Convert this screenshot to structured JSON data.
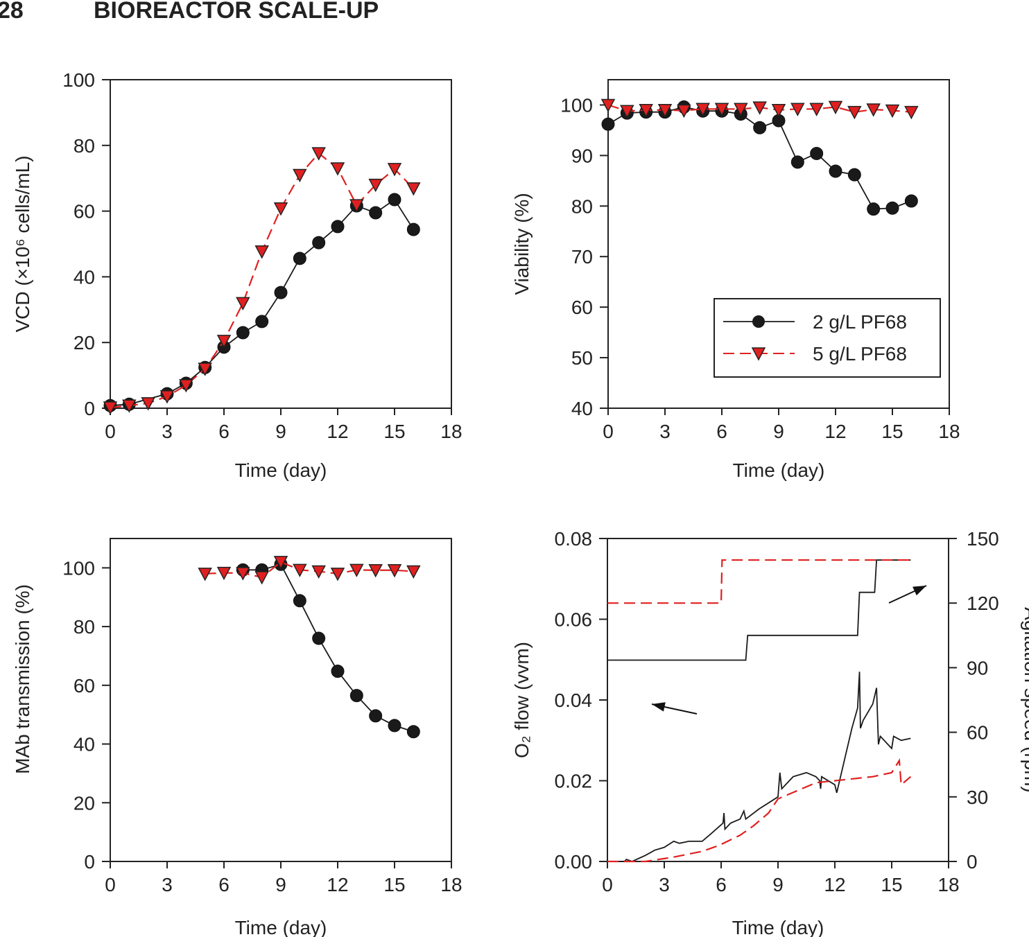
{
  "header": {
    "page_number": "28",
    "running_title": "BIOREACTOR SCALE-UP"
  },
  "colors": {
    "series_2gL": "#1a1a1a",
    "series_5gL": "#e02020",
    "axis": "#222222"
  },
  "chart_data": [
    {
      "type": "line",
      "xlabel": "Time (day)",
      "ylabel": "VCD (×10⁶ cells/mL)",
      "xlim": [
        0,
        18
      ],
      "ylim": [
        0,
        100
      ],
      "xticks": [
        0,
        3,
        6,
        9,
        12,
        15,
        18
      ],
      "yticks": [
        0,
        20,
        40,
        60,
        80,
        100
      ],
      "series": [
        {
          "name": "2 g/L PF68",
          "marker": "circle",
          "style": "solid",
          "x": [
            0,
            1,
            3,
            4,
            5,
            6,
            7,
            8,
            9,
            10,
            11,
            12,
            13,
            14,
            15,
            16
          ],
          "y": [
            0.8,
            1.2,
            4.4,
            7.6,
            12.4,
            18.6,
            23,
            26.4,
            35.2,
            45.6,
            50.4,
            55.3,
            61.6,
            59.5,
            63.5,
            54.4
          ]
        },
        {
          "name": "5 g/L PF68",
          "marker": "triangle-down",
          "style": "dashed",
          "x": [
            0,
            1,
            2,
            3,
            4,
            5,
            6,
            7,
            8,
            9,
            10,
            11,
            12,
            13,
            14,
            15,
            16
          ],
          "y": [
            0.2,
            0.8,
            1.5,
            3.6,
            7,
            12,
            20.5,
            32,
            47.7,
            60.8,
            71,
            77.6,
            73,
            61.8,
            68,
            72.8,
            66.9
          ]
        }
      ]
    },
    {
      "type": "line",
      "xlabel": "Time (day)",
      "ylabel": "Viability (%)",
      "xlim": [
        0,
        18
      ],
      "ylim": [
        40,
        105
      ],
      "xticks": [
        0,
        3,
        6,
        9,
        12,
        15,
        18
      ],
      "yticks": [
        40,
        50,
        60,
        70,
        80,
        90,
        100
      ],
      "legend": {
        "placement": "lower-right",
        "entries": [
          "2 g/L PF68",
          "5 g/L PF68"
        ]
      },
      "series": [
        {
          "name": "2 g/L PF68",
          "marker": "circle",
          "style": "solid",
          "x": [
            0,
            1,
            2,
            3,
            4,
            5,
            6,
            7,
            8,
            9,
            10,
            11,
            12,
            13,
            14,
            15,
            16
          ],
          "y": [
            96.2,
            98.4,
            98.6,
            98.6,
            99.6,
            98.8,
            98.8,
            98.2,
            95.5,
            96.9,
            88.7,
            90.4,
            86.9,
            86.2,
            79.4,
            79.6,
            81
          ]
        },
        {
          "name": "5 g/L PF68",
          "marker": "triangle-down",
          "style": "dashed",
          "x": [
            0,
            1,
            2,
            3,
            4,
            5,
            6,
            7,
            8,
            9,
            10,
            11,
            12,
            13,
            14,
            15,
            16
          ],
          "y": [
            100,
            98.8,
            99,
            99,
            98.9,
            99.2,
            99.2,
            99.2,
            99.5,
            99,
            99.2,
            99.2,
            99.6,
            98.6,
            99.1,
            98.9,
            98.6
          ]
        }
      ]
    },
    {
      "type": "line",
      "xlabel": "Time (day)",
      "ylabel": "MAb transmission (%)",
      "xlim": [
        0,
        18
      ],
      "ylim": [
        0,
        110
      ],
      "xticks": [
        0,
        3,
        6,
        9,
        12,
        15,
        18
      ],
      "yticks": [
        0,
        20,
        40,
        60,
        80,
        100
      ],
      "series": [
        {
          "name": "2 g/L PF68",
          "marker": "circle",
          "style": "solid",
          "x": [
            7,
            8,
            9,
            10,
            11,
            12,
            13,
            14,
            15,
            16
          ],
          "y": [
            99.3,
            99.3,
            101.2,
            88.8,
            76,
            64.8,
            56.5,
            49.6,
            46.3,
            44.2
          ]
        },
        {
          "name": "5 g/L PF68",
          "marker": "triangle-down",
          "style": "dashed",
          "x": [
            5,
            6,
            7,
            8,
            9,
            10,
            11,
            12,
            13,
            14,
            15,
            16
          ],
          "y": [
            98,
            98.3,
            98.2,
            96.8,
            102,
            99.3,
            98.8,
            98,
            99.3,
            99.2,
            99.2,
            98.8
          ]
        }
      ]
    },
    {
      "type": "line",
      "xlabel": "Time (day)",
      "ylabel": "O₂ flow (vvm)",
      "ylabel_right": "Agitation speed (rpm)",
      "xlim": [
        0,
        18
      ],
      "ylim": [
        0,
        0.08
      ],
      "ylim_right": [
        0,
        150
      ],
      "xticks": [
        0,
        3,
        6,
        9,
        12,
        15,
        18
      ],
      "yticks": [
        "0.00",
        "0.02",
        "0.04",
        "0.06",
        "0.08"
      ],
      "yticks_right": [
        0,
        30,
        60,
        90,
        120,
        150
      ],
      "annotations": [
        {
          "type": "arrow",
          "points_to": "left axis (O2 flow curves)"
        },
        {
          "type": "arrow",
          "points_to": "right axis (agitation step curves)"
        }
      ],
      "series": [
        {
          "name": "2 g/L PF68 O2 flow",
          "axis": "left",
          "style": "solid",
          "x": [
            0,
            0.9,
            1.0,
            1.3,
            2,
            2.5,
            3,
            3.5,
            3.8,
            4.3,
            5,
            5.5,
            6.1,
            6.15,
            6.2,
            6.5,
            7,
            7.2,
            7.3,
            8,
            9,
            9.1,
            9.2,
            9.8,
            10.5,
            11,
            11.2,
            11.25,
            11.3,
            12,
            12.1,
            12.2,
            12.9,
            13.2,
            13.3,
            13.35,
            13.5,
            14,
            14.2,
            14.3,
            14.4,
            14.8,
            15,
            15.1,
            15.5,
            16
          ],
          "y": [
            0,
            0,
            0.0005,
            0,
            0.0015,
            0.0028,
            0.0035,
            0.005,
            0.0045,
            0.005,
            0.005,
            0.007,
            0.0095,
            0.012,
            0.008,
            0.0095,
            0.0105,
            0.0125,
            0.0105,
            0.013,
            0.016,
            0.022,
            0.018,
            0.021,
            0.022,
            0.021,
            0.02,
            0.018,
            0.021,
            0.019,
            0.017,
            0.019,
            0.033,
            0.038,
            0.047,
            0.033,
            0.035,
            0.039,
            0.043,
            0.029,
            0.031,
            0.029,
            0.028,
            0.031,
            0.03,
            0.0305
          ]
        },
        {
          "name": "5 g/L PF68 O2 flow",
          "axis": "left",
          "style": "dashed",
          "x": [
            0,
            2,
            3.4,
            5,
            5.9,
            7,
            7.7,
            8.5,
            9,
            10,
            11,
            12,
            13,
            14,
            15,
            15.4,
            15.5,
            16
          ],
          "y": [
            0,
            0,
            0.001,
            0.0025,
            0.004,
            0.0065,
            0.0088,
            0.012,
            0.0155,
            0.0175,
            0.0195,
            0.02,
            0.0205,
            0.021,
            0.022,
            0.025,
            0.019,
            0.021
          ]
        },
        {
          "name": "2 g/L PF68 agitation",
          "axis": "right",
          "style": "solid",
          "x": [
            0,
            7.3,
            7.4,
            13.2,
            13.3,
            14.1,
            14.2,
            16
          ],
          "y": [
            93.5,
            93.5,
            105,
            105,
            125,
            125,
            140,
            140
          ]
        },
        {
          "name": "5 g/L PF68 agitation",
          "axis": "right",
          "style": "dashed",
          "x": [
            0,
            6,
            6.05,
            16
          ],
          "y": [
            120,
            120,
            140,
            140
          ]
        }
      ]
    }
  ]
}
